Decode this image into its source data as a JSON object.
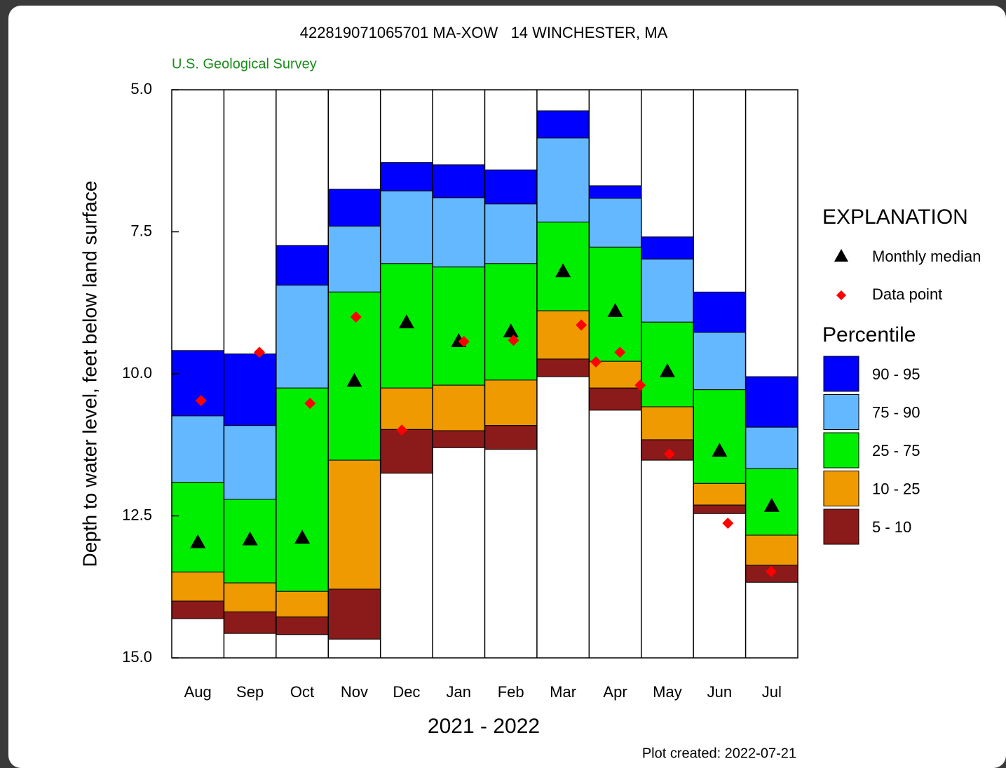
{
  "chart_data": {
    "type": "percentile",
    "title": "422819071065701 MA-XOW   14 WINCHESTER, MA",
    "subtitle": "U.S. Geological Survey",
    "y_label": "Depth to water level, feet below land surface",
    "x_label": "2021 - 2022",
    "note": "Plot created: 2022-07-21",
    "legend_title": "EXPLANATION",
    "legend_group_title": "Percentile",
    "categories": [
      "Aug",
      "Sep",
      "Oct",
      "Nov",
      "Dec",
      "Jan",
      "Feb",
      "Mar",
      "Apr",
      "May",
      "Jun",
      "Jul"
    ],
    "ylim": [
      5,
      15
    ],
    "y_inverted": true,
    "yticks": [
      {
        "value": 5,
        "label": "5.0"
      },
      7.5,
      {
        "value": 10,
        "label": "10.0"
      },
      12.5,
      {
        "value": 15,
        "label": "15.0"
      }
    ],
    "xlim": [
      0,
      12
    ],
    "series": [
      {
        "name": "Monthly median",
        "kind": "median",
        "color": "#000000",
        "values": [
          12.96,
          12.91,
          12.88,
          10.12,
          9.09,
          9.42,
          9.25,
          8.19,
          8.89,
          9.95,
          11.35,
          12.32
        ]
      },
      {
        "name": "Data point",
        "kind": "point",
        "color": "#ff0000",
        "x": [
          0.56,
          1.68,
          2.65,
          3.53,
          4.41,
          5.6,
          6.55,
          7.85,
          8.13,
          8.59,
          8.98,
          9.54,
          10.66,
          11.49
        ],
        "values": [
          10.47,
          9.62,
          10.52,
          9.0,
          10.99,
          9.43,
          9.41,
          9.14,
          9.79,
          9.62,
          10.2,
          11.41,
          12.63,
          13.48
        ]
      },
      {
        "name": "90 - 95",
        "kind": "band",
        "color": "#0000ff",
        "ranges": [
          [
            9.59,
            10.74
          ],
          [
            9.65,
            10.91
          ],
          [
            7.74,
            8.44
          ],
          [
            6.75,
            7.4
          ],
          [
            6.28,
            6.78
          ],
          [
            6.32,
            6.9
          ],
          [
            6.41,
            7.01
          ],
          [
            5.37,
            5.85
          ],
          [
            6.69,
            6.91
          ],
          [
            7.59,
            7.98
          ],
          [
            8.56,
            9.27
          ],
          [
            10.05,
            10.94
          ]
        ]
      },
      {
        "name": "75 - 90",
        "kind": "band",
        "color": "#63b8ff",
        "ranges": [
          [
            10.74,
            11.91
          ],
          [
            10.91,
            12.21
          ],
          [
            8.44,
            10.25
          ],
          [
            7.4,
            8.56
          ],
          [
            6.78,
            8.06
          ],
          [
            6.9,
            8.12
          ],
          [
            7.01,
            8.06
          ],
          [
            5.85,
            7.33
          ],
          [
            6.91,
            7.77
          ],
          [
            7.98,
            9.09
          ],
          [
            9.27,
            10.28
          ],
          [
            10.94,
            11.67
          ]
        ]
      },
      {
        "name": "25 - 75",
        "kind": "band",
        "color": "#00ee00",
        "ranges": [
          [
            11.91,
            13.49
          ],
          [
            12.21,
            13.68
          ],
          [
            10.25,
            13.83
          ],
          [
            8.56,
            11.52
          ],
          [
            8.06,
            10.25
          ],
          [
            8.12,
            10.2
          ],
          [
            8.06,
            10.11
          ],
          [
            7.33,
            8.89
          ],
          [
            7.77,
            9.78
          ],
          [
            9.09,
            10.58
          ],
          [
            10.28,
            11.93
          ],
          [
            11.67,
            12.84
          ]
        ]
      },
      {
        "name": "10 - 25",
        "kind": "band",
        "color": "#ee9a00",
        "ranges": [
          [
            13.49,
            14.0
          ],
          [
            13.68,
            14.19
          ],
          [
            13.83,
            14.28
          ],
          [
            11.52,
            13.79
          ],
          [
            10.25,
            10.98
          ],
          [
            10.2,
            11.0
          ],
          [
            10.11,
            10.91
          ],
          [
            8.89,
            9.74
          ],
          [
            9.78,
            10.25
          ],
          [
            10.58,
            11.16
          ],
          [
            11.93,
            12.31
          ],
          [
            12.84,
            13.37
          ]
        ]
      },
      {
        "name": "5 - 10",
        "kind": "band",
        "color": "#8b1a1a",
        "ranges": [
          [
            14.0,
            14.31
          ],
          [
            14.19,
            14.57
          ],
          [
            14.28,
            14.59
          ],
          [
            13.79,
            14.67
          ],
          [
            10.98,
            11.75
          ],
          [
            11.0,
            11.3
          ],
          [
            10.91,
            11.33
          ],
          [
            9.74,
            10.05
          ],
          [
            10.25,
            10.64
          ],
          [
            11.16,
            11.52
          ],
          [
            12.31,
            12.46
          ],
          [
            13.37,
            13.67
          ]
        ]
      }
    ]
  }
}
